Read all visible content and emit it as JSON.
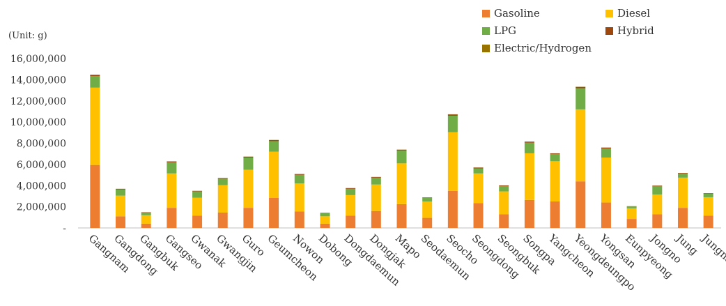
{
  "chart_data": {
    "type": "bar",
    "stacked": true,
    "unit_label": "(Unit: g)",
    "ylim": [
      0,
      16000000
    ],
    "yticks": [
      "-",
      "2,000,000",
      "4,000,000",
      "6,000,000",
      "8,000,000",
      "10,000,000",
      "12,000,000",
      "14,000,000",
      "16,000,000"
    ],
    "categories": [
      "Gangnam",
      "Gangdong",
      "Gangbuk",
      "Gangseo",
      "Gwanak",
      "Gwangjin",
      "Guro",
      "Geumcheon",
      "Nowon",
      "Dobong",
      "Dongdaemun",
      "Dongjak",
      "Mapo",
      "Seodaemun",
      "Seocho",
      "Seongdong",
      "Seongbuk",
      "Songpa",
      "Yangcheon",
      "Yeongdeungpo",
      "Yongsan",
      "Eunpyeong",
      "Jongno",
      "Jung",
      "Jungnang"
    ],
    "series": [
      {
        "name": "Gasoline",
        "color": "#ED7D31",
        "values": [
          5950000,
          1100000,
          400000,
          1900000,
          1150000,
          1450000,
          1900000,
          2850000,
          1550000,
          400000,
          1150000,
          1600000,
          2250000,
          950000,
          3500000,
          2350000,
          1300000,
          2650000,
          2500000,
          4400000,
          2400000,
          850000,
          1300000,
          1900000,
          1150000
        ]
      },
      {
        "name": "Diesel",
        "color": "#FFC000",
        "values": [
          7300000,
          1950000,
          800000,
          3250000,
          1700000,
          2600000,
          3600000,
          4350000,
          2650000,
          700000,
          1950000,
          2500000,
          3850000,
          1550000,
          5550000,
          2800000,
          2150000,
          4400000,
          3800000,
          6800000,
          4250000,
          1000000,
          1850000,
          2850000,
          1750000
        ]
      },
      {
        "name": "LPG",
        "color": "#70AD47",
        "values": [
          1100000,
          580000,
          250000,
          1050000,
          600000,
          600000,
          1150000,
          1000000,
          820000,
          300000,
          600000,
          650000,
          1200000,
          330000,
          1550000,
          480000,
          500000,
          1000000,
          680000,
          2000000,
          850000,
          180000,
          780000,
          370000,
          330000
        ]
      },
      {
        "name": "Hybrid",
        "color": "#9E480E",
        "values": [
          100000,
          60000,
          30000,
          80000,
          50000,
          60000,
          80000,
          100000,
          70000,
          30000,
          60000,
          60000,
          90000,
          40000,
          120000,
          70000,
          60000,
          100000,
          60000,
          120000,
          90000,
          20000,
          60000,
          70000,
          50000
        ]
      },
      {
        "name": "Electric/Hydrogen",
        "color": "#997300",
        "values": [
          20000,
          10000,
          5000,
          15000,
          10000,
          10000,
          15000,
          15000,
          10000,
          5000,
          10000,
          10000,
          15000,
          10000,
          20000,
          10000,
          10000,
          15000,
          10000,
          20000,
          10000,
          5000,
          10000,
          10000,
          10000
        ]
      }
    ],
    "legend_position": "top-right",
    "grid": false
  }
}
